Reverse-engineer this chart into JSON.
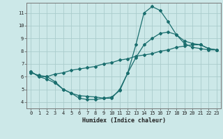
{
  "xlabel": "Humidex (Indice chaleur)",
  "bg_color": "#cce8e8",
  "grid_color": "#aacccc",
  "line_color": "#1a6e6e",
  "xlim": [
    -0.5,
    23.5
  ],
  "ylim": [
    3.5,
    11.8
  ],
  "xticks": [
    0,
    1,
    2,
    3,
    4,
    5,
    6,
    7,
    8,
    9,
    10,
    11,
    12,
    13,
    14,
    15,
    16,
    17,
    18,
    19,
    20,
    21,
    22,
    23
  ],
  "yticks": [
    4,
    5,
    6,
    7,
    8,
    9,
    10,
    11
  ],
  "line1_x": [
    0,
    1,
    2,
    3,
    4,
    5,
    6,
    7,
    8,
    9,
    10,
    11,
    12,
    13,
    14,
    15,
    16,
    17,
    18,
    19,
    20,
    21,
    22,
    23
  ],
  "line1_y": [
    6.4,
    6.0,
    6.0,
    5.6,
    5.0,
    4.7,
    4.3,
    4.2,
    4.2,
    4.3,
    4.3,
    5.0,
    6.3,
    8.5,
    11.0,
    11.5,
    11.2,
    10.3,
    9.3,
    8.6,
    8.3,
    8.2,
    8.1,
    8.1
  ],
  "line2_x": [
    0,
    1,
    2,
    3,
    4,
    5,
    6,
    7,
    8,
    9,
    10,
    11,
    12,
    13,
    14,
    15,
    16,
    17,
    18,
    19,
    20,
    21,
    22,
    23
  ],
  "line2_y": [
    6.3,
    6.1,
    6.0,
    6.2,
    6.3,
    6.5,
    6.6,
    6.7,
    6.8,
    7.0,
    7.1,
    7.3,
    7.4,
    7.6,
    7.7,
    7.8,
    8.0,
    8.1,
    8.3,
    8.4,
    8.5,
    8.5,
    8.2,
    8.1
  ],
  "line3_x": [
    0,
    1,
    2,
    3,
    4,
    5,
    6,
    7,
    8,
    9,
    10,
    11,
    12,
    13,
    14,
    15,
    16,
    17,
    18,
    19,
    20,
    21,
    22,
    23
  ],
  "line3_y": [
    6.4,
    6.0,
    5.8,
    5.5,
    5.0,
    4.7,
    4.5,
    4.45,
    4.4,
    4.3,
    4.4,
    4.9,
    6.3,
    7.5,
    8.5,
    9.0,
    9.4,
    9.5,
    9.3,
    8.8,
    8.6,
    8.5,
    8.2,
    8.1
  ]
}
